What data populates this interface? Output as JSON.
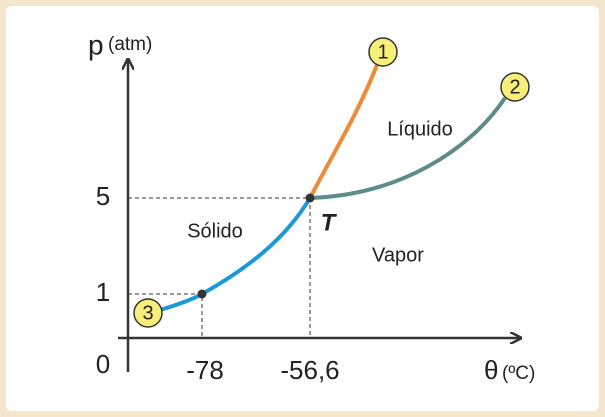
{
  "axes": {
    "y_label": "p",
    "y_unit": "(atm)",
    "x_label": "θ",
    "x_unit": "(ºC)",
    "origin": "0"
  },
  "y_ticks": [
    "1",
    "5"
  ],
  "x_ticks": [
    "-78",
    "-56,6"
  ],
  "regions": {
    "solid": "Sólido",
    "liquid": "Líquido",
    "vapor": "Vapor"
  },
  "triple_point": "T",
  "curves": [
    "1",
    "2",
    "3"
  ]
}
